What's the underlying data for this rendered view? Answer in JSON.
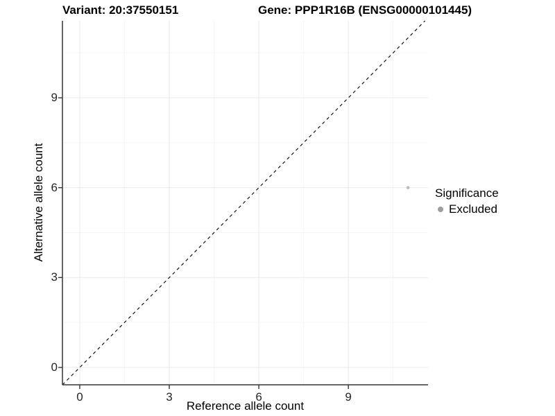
{
  "figure": {
    "background": "#ffffff"
  },
  "chart_data": {
    "type": "scatter",
    "title_left": "Variant: 20:37550151",
    "title_right": "Gene: PPP1R16B (ENSG00000101445)",
    "xlabel": "Reference allele count",
    "ylabel": "Alternative allele count",
    "xlim": [
      -0.58,
      11.67
    ],
    "ylim": [
      -0.58,
      11.57
    ],
    "xticks": [
      0,
      3,
      6,
      9
    ],
    "yticks": [
      0,
      3,
      6,
      9
    ],
    "minor_xticks": [
      1.5,
      4.5,
      7.5,
      10.5
    ],
    "minor_yticks": [
      1.5,
      4.5,
      7.5,
      10.5
    ],
    "grid": "major+minor",
    "identity_line": {
      "slope": 1,
      "intercept": 0,
      "style": "dashed",
      "color": "#111111"
    },
    "series": [
      {
        "name": "Excluded",
        "marker": "circle",
        "color": "#bcbcbc",
        "points": [
          {
            "x": 11,
            "y": 6
          }
        ]
      }
    ],
    "legend": {
      "title": "Significance",
      "position": "right",
      "items": [
        {
          "label": "Excluded",
          "color": "#9e9e9e"
        }
      ]
    },
    "colors": {
      "grid_major": "#e9e9e9",
      "grid_minor": "#f5f5f5",
      "axis_line": "#333333",
      "tick_mark": "#333333",
      "tick_label": "#262626",
      "title_text": "#000000"
    }
  }
}
